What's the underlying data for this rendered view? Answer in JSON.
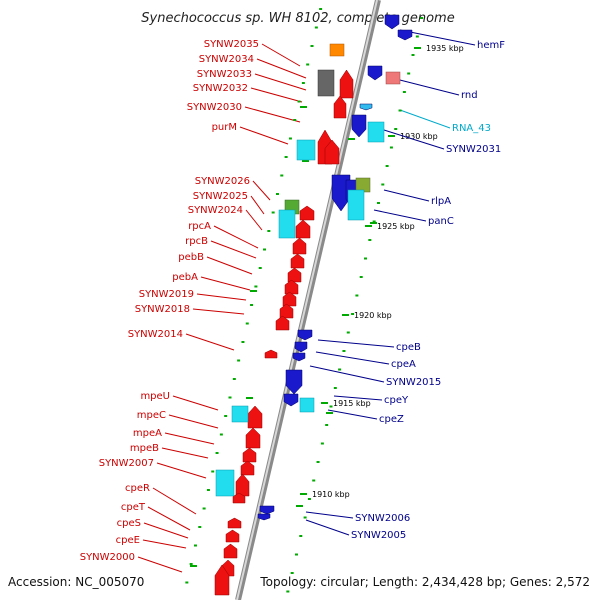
{
  "title": "Synechococcus sp. WH 8102, complete genome",
  "accession": "Accession: NC_005070",
  "topology": "Topology: circular; Length: 2,434,428 bp; Genes: 2,572",
  "colors": {
    "left_label": "#cc0000",
    "right_label": "#00008b",
    "rna_label": "#00aacc",
    "tick": "#00aa00",
    "axis": "#9a9a9a"
  },
  "kbp_ticks": [
    "1935 kbp",
    "1930 kbp",
    "1925 kbp",
    "1920 kbp",
    "1915 kbp",
    "1910 kbp"
  ],
  "left_genes": [
    "SYNW2035",
    "SYNW2034",
    "SYNW2033",
    "SYNW2032",
    "SYNW2030",
    "purM",
    "SYNW2026",
    "SYNW2025",
    "SYNW2024",
    "rpcA",
    "rpcB",
    "pebB",
    "pebA",
    "SYNW2019",
    "SYNW2018",
    "SYNW2014",
    "mpeU",
    "mpeC",
    "mpeA",
    "mpeB",
    "SYNW2007",
    "cpeR",
    "cpeT",
    "cpeS",
    "cpeE",
    "SYNW2000"
  ],
  "right_genes": [
    "hemF",
    "rnd",
    "RNA_43",
    "SYNW2031",
    "rlpA",
    "panC",
    "cpeB",
    "cpeA",
    "SYNW2015",
    "cpeY",
    "cpeZ",
    "SYNW2006",
    "SYNW2005"
  ]
}
